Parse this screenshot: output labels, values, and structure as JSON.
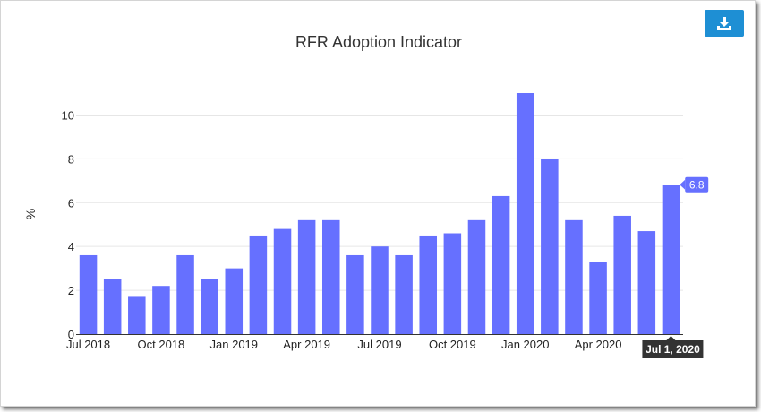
{
  "toolbar": {
    "download_icon": "download-icon"
  },
  "colors": {
    "bar": "#6670ff",
    "grid": "#e6e6e6",
    "axis": "#333333",
    "tooltip_bg": "#333333",
    "button": "#1e8fd4"
  },
  "tooltip": {
    "label": "Jul 1, 2020"
  },
  "chart_data": {
    "type": "bar",
    "title": "RFR Adoption Indicator",
    "xlabel": "",
    "ylabel": "%",
    "ylim": [
      0,
      11
    ],
    "yticks": [
      0,
      2,
      4,
      6,
      8,
      10
    ],
    "grid": true,
    "categories": [
      "Jul 2018",
      "Aug 2018",
      "Sep 2018",
      "Oct 2018",
      "Nov 2018",
      "Dec 2018",
      "Jan 2019",
      "Feb 2019",
      "Mar 2019",
      "Apr 2019",
      "May 2019",
      "Jun 2019",
      "Jul 2019",
      "Aug 2019",
      "Sep 2019",
      "Oct 2019",
      "Nov 2019",
      "Dec 2019",
      "Jan 2020",
      "Feb 2020",
      "Mar 2020",
      "Apr 2020",
      "May 2020",
      "Jun 2020",
      "Jul 2020"
    ],
    "tick_labels": [
      "Jul 2018",
      "Oct 2018",
      "Jan 2019",
      "Apr 2019",
      "Jul 2019",
      "Oct 2019",
      "Jan 2020",
      "Apr 2020"
    ],
    "values": [
      3.6,
      2.5,
      1.7,
      2.2,
      3.6,
      2.5,
      3.0,
      4.5,
      4.8,
      5.2,
      5.2,
      3.6,
      4.0,
      3.6,
      4.5,
      4.6,
      5.2,
      6.3,
      11.0,
      8.0,
      5.2,
      3.3,
      5.4,
      4.7,
      6.8
    ],
    "last_value_label": "6.8"
  }
}
